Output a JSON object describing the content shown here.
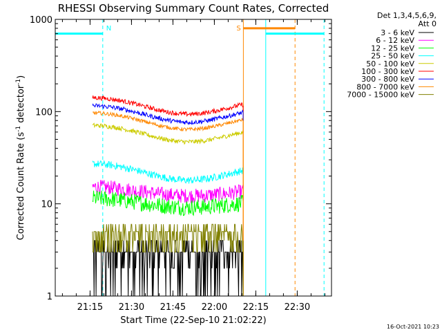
{
  "chart_data": {
    "type": "line",
    "title": "RHESSI Observing Summary Count Rates, Corrected",
    "xlabel": "Start Time (22-Sep-10 21:02:22)",
    "ylabel_main": "Corrected Count Rate (s",
    "ylabel_sup1": "-1",
    "ylabel_mid": " detector",
    "ylabel_sup2": "-1",
    "ylabel_end": ")",
    "yscale": "log",
    "ylim": [
      1,
      1000
    ],
    "xlim_minutes": [
      0,
      100
    ],
    "x_ticks": [
      {
        "label": "21:15",
        "minutes": 12.6
      },
      {
        "label": "21:30",
        "minutes": 27.6
      },
      {
        "label": "21:45",
        "minutes": 42.6
      },
      {
        "label": "22:00",
        "minutes": 57.6
      },
      {
        "label": "22:15",
        "minutes": 72.6
      },
      {
        "label": "22:30",
        "minutes": 87.6
      }
    ],
    "y_ticks": [
      {
        "label": "1",
        "value": 1
      },
      {
        "label": "10",
        "value": 10
      },
      {
        "label": "100",
        "value": 100
      },
      {
        "label": "1000",
        "value": 1000
      }
    ],
    "legend_header": [
      "Det 1,3,4,5,6,9,",
      "Att 0"
    ],
    "data_start_minutes": 13.5,
    "data_end_minutes": 68.0,
    "series": [
      {
        "name": "3 - 6 keV",
        "color": "#000000",
        "base": 3.0,
        "noise": 0.45
      },
      {
        "name": "6 - 12 keV",
        "color": "#ff00ff",
        "base": 14.0,
        "noise": 0.08
      },
      {
        "name": "12 - 25 keV",
        "color": "#00ff00",
        "base": 10.5,
        "noise": 0.09
      },
      {
        "name": "25 - 50 keV",
        "color": "#00ffff",
        "base": 23.0,
        "noise": 0.04
      },
      {
        "name": "50 - 100 keV",
        "color": "#cccc00",
        "base": 60.0,
        "noise": 0.025
      },
      {
        "name": "100 - 300 keV",
        "color": "#ff0000",
        "base": 120.0,
        "noise": 0.025
      },
      {
        "name": "300 - 800 keV",
        "color": "#0000ff",
        "base": 98.0,
        "noise": 0.025
      },
      {
        "name": "800 - 7000 keV",
        "color": "#ff8800",
        "base": 82.0,
        "noise": 0.02
      },
      {
        "name": "7000 - 15000 keV",
        "color": "#808000",
        "base": 4.5,
        "noise": 0.12
      }
    ],
    "annotations": [
      {
        "label": "N",
        "color": "#00ffff",
        "solid_minutes": 0.0,
        "dashed_minutes": 17.2
      },
      {
        "label": "S",
        "color": "#ff8800",
        "solid_minutes": 68.1,
        "dashed_minutes": 86.8
      },
      {
        "label": "",
        "color": "#00ffff",
        "solid_minutes": 76.2,
        "dashed_minutes": 97.3
      }
    ],
    "annotation_bars": [
      {
        "color": "#00ffff",
        "from": 0.0,
        "to": 17.2,
        "level": 700
      },
      {
        "color": "#ff8800",
        "from": 68.1,
        "to": 86.8,
        "level": 800
      },
      {
        "color": "#00ffff",
        "from": 76.2,
        "to": 97.3,
        "level": 700
      }
    ],
    "timestamp": "16-Oct-2021 10:23"
  }
}
